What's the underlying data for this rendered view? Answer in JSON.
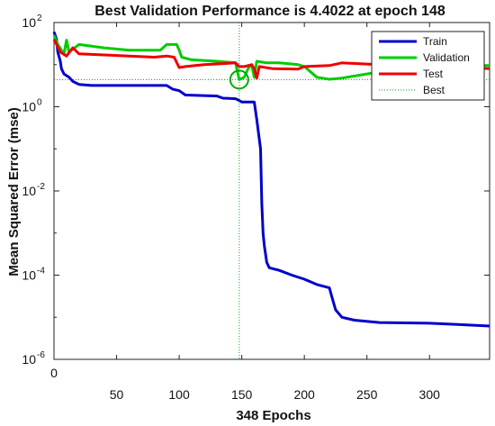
{
  "chart_data": {
    "type": "line",
    "title": "Best Validation Performance is 4.4022 at epoch 148",
    "xlabel": "348 Epochs",
    "ylabel": "Mean Squared Error  (mse)",
    "xlim": [
      0,
      348
    ],
    "ylim": [
      1e-06,
      100
    ],
    "yscale": "log",
    "x_ticks": [
      0,
      50,
      100,
      150,
      200,
      250,
      300
    ],
    "y_ticks": [
      {
        "base": "10",
        "exp": "2",
        "value": 100
      },
      {
        "base": "10",
        "exp": "0",
        "value": 1
      },
      {
        "base": "10",
        "exp": "-2",
        "value": 0.01
      },
      {
        "base": "10",
        "exp": "-4",
        "value": 0.0001
      },
      {
        "base": "10",
        "exp": "-6",
        "value": 1e-06
      }
    ],
    "grid": false,
    "legend_position": "top-right",
    "series": [
      {
        "name": "Train",
        "color": "#0000cc",
        "points": [
          [
            0,
            60
          ],
          [
            2,
            40
          ],
          [
            3,
            20
          ],
          [
            5,
            12
          ],
          [
            6,
            8
          ],
          [
            8,
            6
          ],
          [
            12,
            5
          ],
          [
            15,
            4
          ],
          [
            20,
            3.4
          ],
          [
            30,
            3.2
          ],
          [
            60,
            3.2
          ],
          [
            90,
            3.2
          ],
          [
            95,
            2.6
          ],
          [
            100,
            2.4
          ],
          [
            105,
            1.9
          ],
          [
            130,
            1.8
          ],
          [
            135,
            1.6
          ],
          [
            145,
            1.55
          ],
          [
            150,
            1.3
          ],
          [
            158,
            1.3
          ],
          [
            160,
            1.3
          ],
          [
            162,
            0.5
          ],
          [
            165,
            0.1
          ],
          [
            166,
            0.005
          ],
          [
            167,
            0.001
          ],
          [
            168,
            0.0005
          ],
          [
            170,
            0.0002
          ],
          [
            172,
            0.00015
          ],
          [
            180,
            0.00013
          ],
          [
            190,
            0.0001
          ],
          [
            200,
            8e-05
          ],
          [
            210,
            6e-05
          ],
          [
            220,
            5e-05
          ],
          [
            222,
            3e-05
          ],
          [
            225,
            1.5e-05
          ],
          [
            230,
            1e-05
          ],
          [
            240,
            8.5e-06
          ],
          [
            260,
            7.5e-06
          ],
          [
            300,
            7.2e-06
          ],
          [
            320,
            6.8e-06
          ],
          [
            348,
            6.2e-06
          ]
        ]
      },
      {
        "name": "Validation",
        "color": "#00cc00",
        "points": [
          [
            0,
            50
          ],
          [
            3,
            30
          ],
          [
            6,
            22
          ],
          [
            8,
            18
          ],
          [
            10,
            38
          ],
          [
            12,
            20
          ],
          [
            20,
            30
          ],
          [
            40,
            25
          ],
          [
            60,
            22
          ],
          [
            85,
            22
          ],
          [
            90,
            30
          ],
          [
            98,
            30
          ],
          [
            100,
            22
          ],
          [
            102,
            15
          ],
          [
            110,
            13
          ],
          [
            130,
            12
          ],
          [
            145,
            11
          ],
          [
            148,
            4.4
          ],
          [
            152,
            5
          ],
          [
            155,
            8
          ],
          [
            158,
            10
          ],
          [
            160,
            5
          ],
          [
            162,
            12
          ],
          [
            170,
            11
          ],
          [
            180,
            11
          ],
          [
            195,
            10
          ],
          [
            200,
            9
          ],
          [
            210,
            5
          ],
          [
            220,
            4.5
          ],
          [
            230,
            4.8
          ],
          [
            250,
            6
          ],
          [
            270,
            7.5
          ],
          [
            300,
            9
          ],
          [
            320,
            9.5
          ],
          [
            348,
            9.5
          ]
        ]
      },
      {
        "name": "Test",
        "color": "#ee0000",
        "points": [
          [
            0,
            40
          ],
          [
            5,
            20
          ],
          [
            10,
            16
          ],
          [
            15,
            25
          ],
          [
            20,
            18
          ],
          [
            40,
            17
          ],
          [
            60,
            16
          ],
          [
            80,
            15
          ],
          [
            90,
            16
          ],
          [
            96,
            15
          ],
          [
            100,
            8.5
          ],
          [
            105,
            9
          ],
          [
            120,
            10
          ],
          [
            145,
            11
          ],
          [
            148,
            9
          ],
          [
            152,
            9
          ],
          [
            158,
            10
          ],
          [
            160,
            8
          ],
          [
            162,
            4.8
          ],
          [
            164,
            9
          ],
          [
            175,
            8
          ],
          [
            195,
            7.8
          ],
          [
            200,
            9
          ],
          [
            220,
            9.5
          ],
          [
            230,
            11
          ],
          [
            260,
            10
          ],
          [
            300,
            9.5
          ],
          [
            348,
            8
          ]
        ]
      }
    ],
    "best": {
      "label": "Best",
      "epoch": 148,
      "value": 4.4022,
      "color": "#00aa00"
    }
  }
}
